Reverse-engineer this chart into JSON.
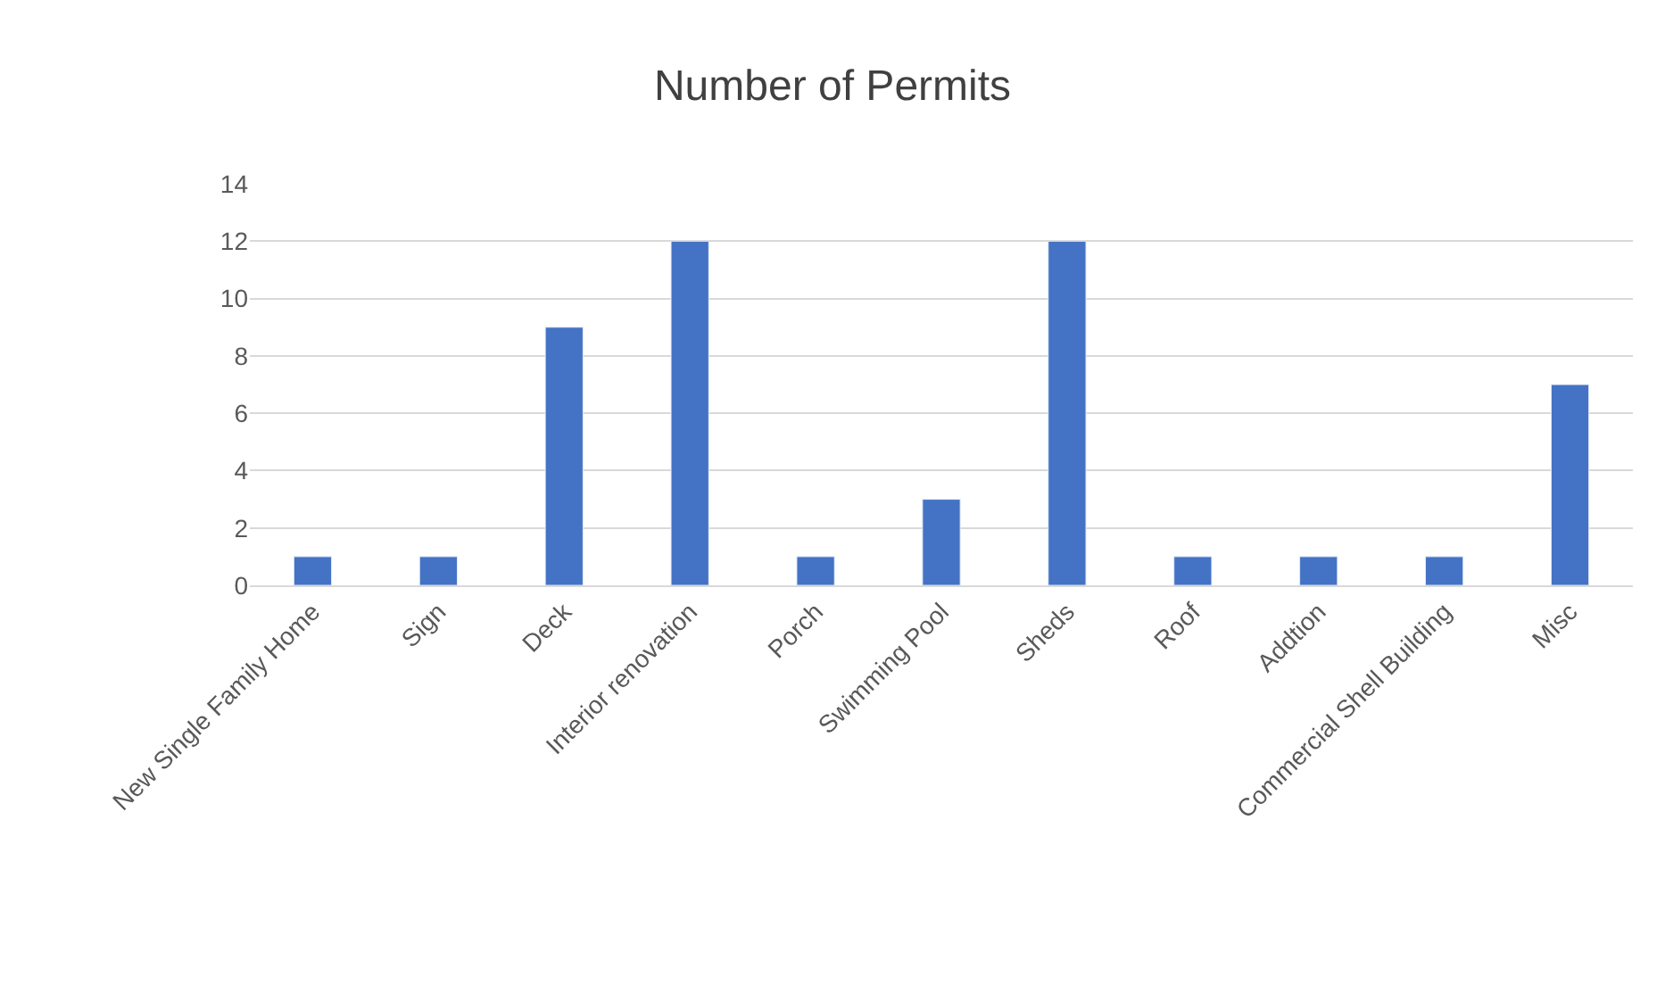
{
  "chart_data": {
    "type": "bar",
    "title": "Number of Permits",
    "categories": [
      "New Single Family Home",
      "Sign",
      "Deck",
      "Interior renovation",
      "Porch",
      "Swimming Pool",
      "Sheds",
      "Roof",
      "Addtion",
      "Commercial Shell Building",
      "Misc"
    ],
    "values": [
      1,
      1,
      9,
      12,
      1,
      3,
      12,
      1,
      1,
      1,
      7
    ],
    "color": "#4472c4",
    "ylim": [
      0,
      14
    ],
    "yticks": [
      0,
      2,
      4,
      6,
      8,
      10,
      12,
      14
    ],
    "grid": "y"
  }
}
